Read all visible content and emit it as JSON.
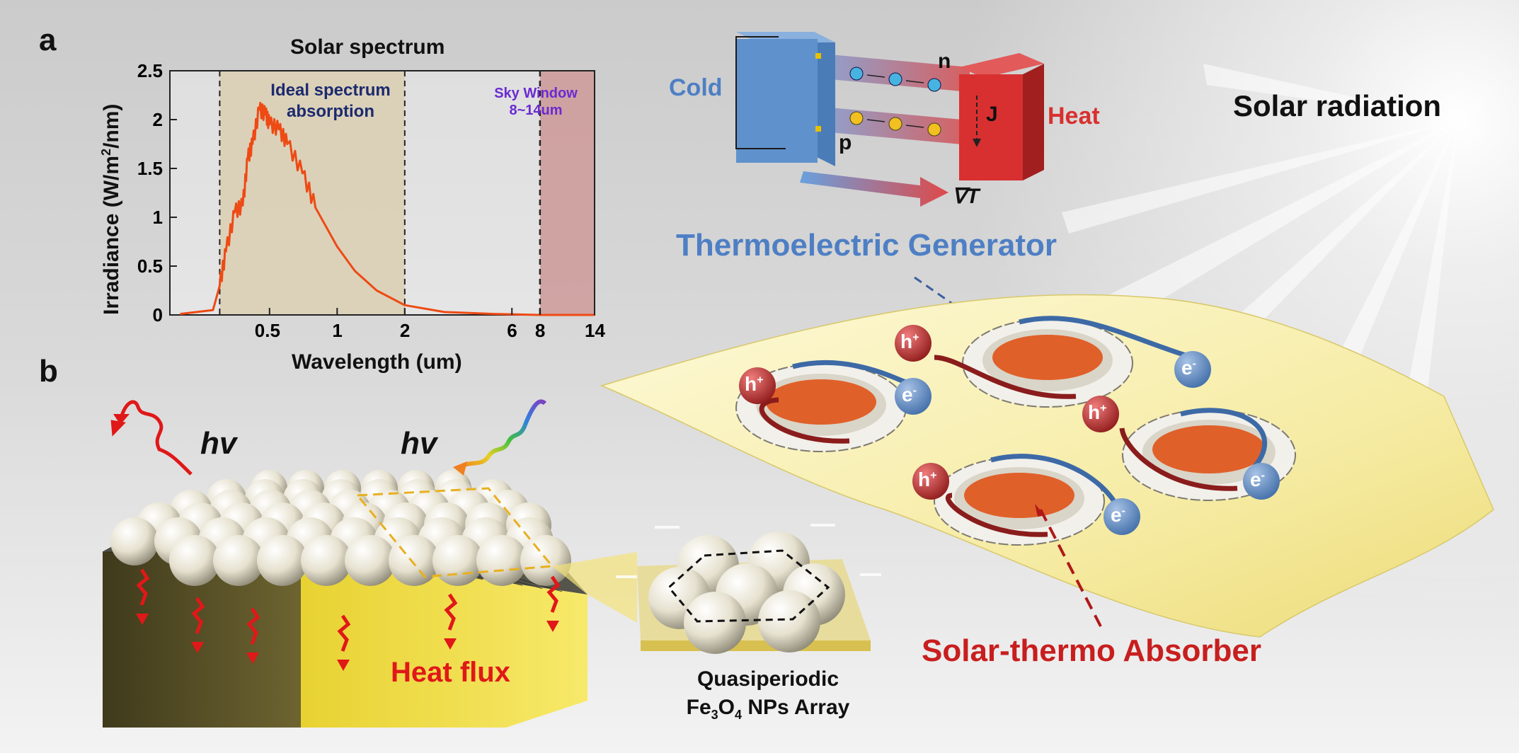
{
  "panels": {
    "a": "a",
    "b": "b"
  },
  "solar_chart": {
    "title": "Solar spectrum",
    "xlabel": "Wavelength (um)",
    "ylabel_main": "Irradiance (W/m",
    "ylabel_sup": "2",
    "ylabel_end": "/nm)",
    "y_ticks": [
      "0",
      "0.5",
      "1",
      "1.5",
      "2",
      "2.5"
    ],
    "x_ticks": [
      "0.5",
      "1",
      "2",
      "6",
      "8",
      "14"
    ],
    "ideal_label_line1": "Ideal spectrum",
    "ideal_label_line2": "absorption",
    "sky_label_line1": "Sky Window",
    "sky_label_line2": "8~14um"
  },
  "chart_data": {
    "type": "line",
    "title": "Solar spectrum",
    "xlabel": "Wavelength (um)",
    "ylabel": "Irradiance (W/m2/nm)",
    "ylim": [
      0,
      2.5
    ],
    "xlim": [
      0.18,
      14
    ],
    "x_scale": "log",
    "grid": false,
    "series": [
      {
        "x": [
          0.2,
          0.28,
          0.3,
          0.32,
          0.35,
          0.38,
          0.4,
          0.42,
          0.45,
          0.48,
          0.5,
          0.55,
          0.6,
          0.7,
          0.8,
          1.0,
          1.2,
          1.5,
          2.0,
          3.0,
          5.0,
          8.0,
          14.0
        ],
        "y": [
          0.01,
          0.05,
          0.3,
          0.65,
          1.05,
          1.12,
          1.6,
          1.75,
          2.1,
          2.05,
          1.95,
          1.9,
          1.75,
          1.45,
          1.1,
          0.7,
          0.45,
          0.25,
          0.1,
          0.03,
          0.01,
          0.0,
          0.0
        ]
      }
    ],
    "shaded_regions": [
      {
        "label": "Ideal spectrum absorption",
        "x": [
          0.3,
          2.0
        ]
      },
      {
        "label": "Sky Window 8~14um",
        "x": [
          8.0,
          14.0
        ]
      }
    ]
  },
  "teg": {
    "cold": "Cold",
    "heat": "Heat",
    "n": "n",
    "p": "p",
    "J": "J",
    "gradient": "∇T",
    "title": "Thermoelectric Generator",
    "electron_sign": "−",
    "hole_sign": "+"
  },
  "solar_radiation": "Solar radiation",
  "absorber": {
    "label": "Solar-thermo Absorber",
    "hole_base": "h",
    "hole_sup": "+",
    "electron_base": "e",
    "electron_sup": "-"
  },
  "panel_b": {
    "hv_left": "hv",
    "hv_right": "hv",
    "heat_flux": "Heat flux",
    "array_line1": "Quasiperiodic",
    "array_line2_a": "Fe",
    "array_line2_sub1": "3",
    "array_line2_b": "O",
    "array_line2_sub2": "4",
    "array_line2_c": " NPs Array"
  },
  "colors": {
    "spectrum": "#ee4a14",
    "cold_block": "#5f92cc",
    "heat_block": "#d83030",
    "teg_title": "#4e7fc4",
    "absorber_label": "#c81e1e",
    "heat_flux": "#e01818",
    "sky_window": "#6a2bd0",
    "ideal_text": "#1c2a6e"
  }
}
